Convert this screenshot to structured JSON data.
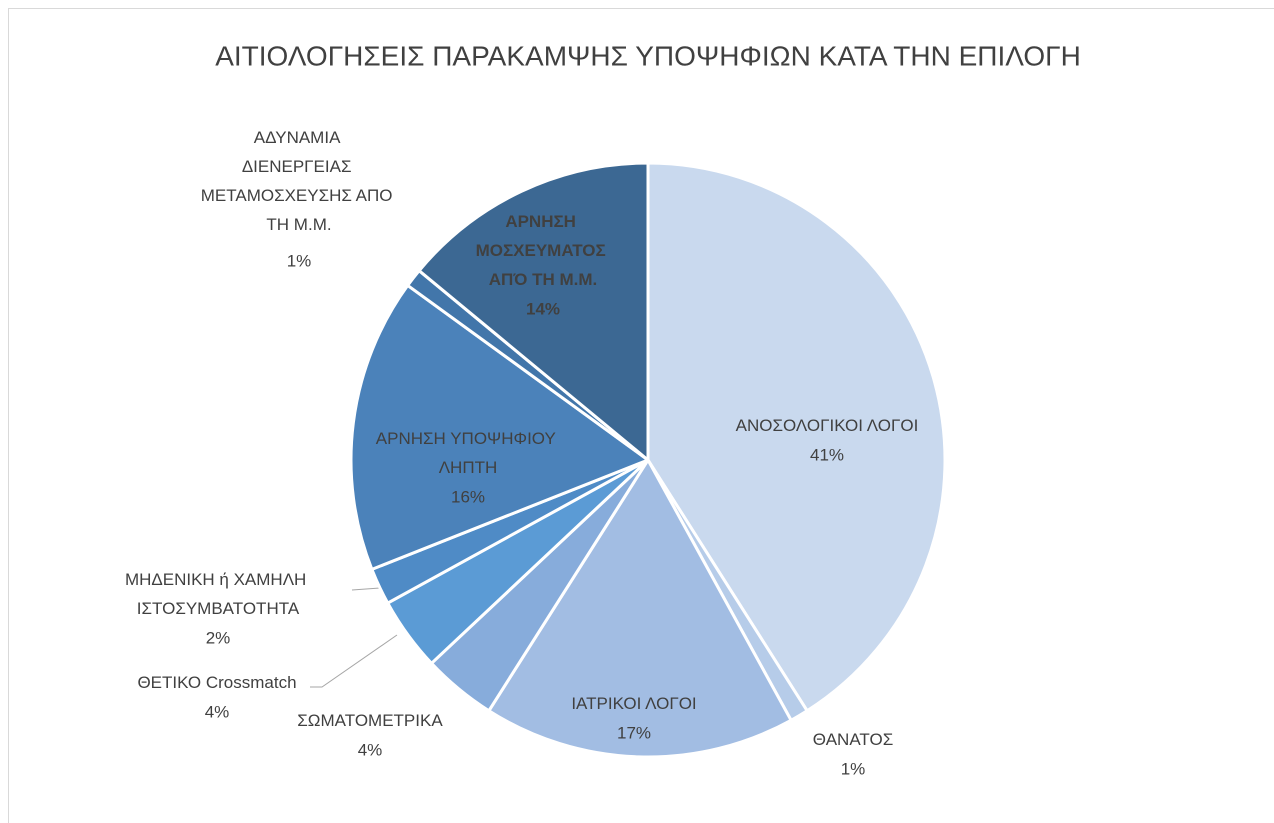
{
  "chart_data": {
    "type": "pie",
    "title": "ΑΙΤΙΟΛΟΓΗΣΕΙΣ ΠΑΡΑΚΑΜΨΗΣ ΥΠΟΨΗΦΙΩΝ ΚΑΤΑ ΤΗΝ ΕΠΙΛΟΓΗ",
    "categories": [
      "ΑΝΟΣΟΛΟΓΙΚΟΙ ΛΟΓΟΙ",
      "ΘΑΝΑΤΟΣ",
      "ΙΑΤΡΙΚΟΙ ΛΟΓΟΙ",
      "ΣΩΜΑΤΟΜΕΤΡΙΚΑ",
      "ΘΕΤΙΚΟ Crossmatch",
      "ΜΗΔΕΝΙΚΗ ή ΧΑΜΗΛΗ ΙΣΤΟΣΥΜΒΑΤΟΤΗΤΑ",
      "ΑΡΝΗΣΗ ΥΠΟΨΗΦΙΟΥ ΛΗΠΤΗ",
      "ΑΔΥΝΑΜΙΑ ΔΙΕΝΕΡΓΕΙΑΣ ΜΕΤΑΜΟΣΧΕΥΣΗΣ ΑΠΟ ΤΗ Μ.Μ.",
      "ΑΡΝΗΣΗ ΜΟΣΧΕΥΜΑΤΟΣ ΑΠΌ ΤΗ Μ.Μ."
    ],
    "values": [
      41,
      1,
      17,
      4,
      4,
      2,
      16,
      1,
      14
    ],
    "value_labels": [
      "41%",
      "1%",
      "17%",
      "4%",
      "4%",
      "2%",
      "16%",
      "1%",
      "14%"
    ],
    "colors": [
      "#c9d9ee",
      "#b6cce9",
      "#a2bde3",
      "#87acdb",
      "#5b9bd5",
      "#4f8bc6",
      "#4b82ba",
      "#4276aa",
      "#3c6893"
    ]
  }
}
